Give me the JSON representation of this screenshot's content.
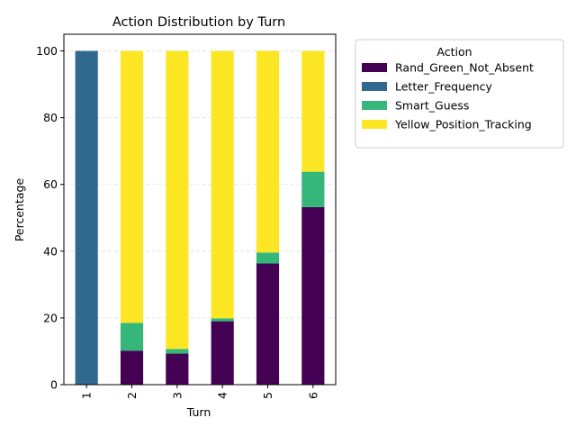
{
  "chart_data": {
    "type": "bar",
    "stacked": true,
    "title": "Action Distribution by Turn",
    "xlabel": "Turn",
    "ylabel": "Percentage",
    "categories": [
      "1",
      "2",
      "3",
      "4",
      "5",
      "6"
    ],
    "ylim": [
      0,
      105
    ],
    "yticks": [
      0,
      20,
      40,
      60,
      80,
      100
    ],
    "grid": "horizontal dashed",
    "legend": {
      "title": "Action",
      "placement": "outside upper right"
    },
    "series": [
      {
        "name": "Rand_Green_Not_Absent",
        "color": "#440154",
        "values": [
          0,
          10.2,
          9.3,
          19.0,
          36.3,
          53.2
        ]
      },
      {
        "name": "Letter_Frequency",
        "color": "#31688e",
        "values": [
          100,
          0,
          0,
          0,
          0,
          0
        ]
      },
      {
        "name": "Smart_Guess",
        "color": "#35b779",
        "values": [
          0,
          8.3,
          1.4,
          0.9,
          3.3,
          10.6
        ]
      },
      {
        "name": "Yellow_Position_Tracking",
        "color": "#fde725",
        "values": [
          0,
          81.5,
          89.3,
          80.1,
          60.4,
          36.2
        ]
      }
    ]
  }
}
